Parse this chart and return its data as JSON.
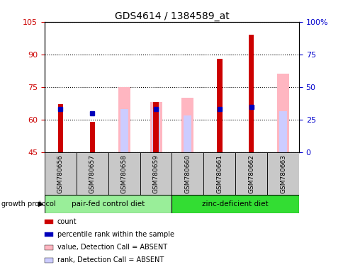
{
  "title": "GDS4614 / 1384589_at",
  "samples": [
    "GSM780656",
    "GSM780657",
    "GSM780658",
    "GSM780659",
    "GSM780660",
    "GSM780661",
    "GSM780662",
    "GSM780663"
  ],
  "ylim_left": [
    45,
    105
  ],
  "ylim_right": [
    0,
    100
  ],
  "yticks_left": [
    45,
    60,
    75,
    90,
    105
  ],
  "yticks_right": [
    0,
    25,
    50,
    75,
    100
  ],
  "ytick_labels_left": [
    "45",
    "60",
    "75",
    "90",
    "105"
  ],
  "ytick_labels_right": [
    "0",
    "25",
    "50",
    "75",
    "100%"
  ],
  "count_values": [
    67,
    59,
    null,
    68,
    null,
    88,
    99,
    null
  ],
  "rank_values": [
    65,
    63,
    null,
    65,
    null,
    65,
    66,
    null
  ],
  "value_absent": [
    null,
    null,
    75,
    68,
    70,
    null,
    null,
    81
  ],
  "rank_absent": [
    null,
    null,
    65,
    65,
    62,
    null,
    null,
    64
  ],
  "count_color": "#CC0000",
  "rank_color": "#0000BB",
  "value_absent_color": "#FFB6C1",
  "rank_absent_color": "#CCCCFF",
  "bg_plot": "#FFFFFF",
  "bg_xaxis": "#C8C8C8",
  "left_axis_color": "#CC0000",
  "right_axis_color": "#0000CC",
  "group1_color": "#99EE99",
  "group2_color": "#33DD33",
  "group1_label": "pair-fed control diet",
  "group2_label": "zinc-deficient diet",
  "growth_protocol_label": "growth protocol"
}
